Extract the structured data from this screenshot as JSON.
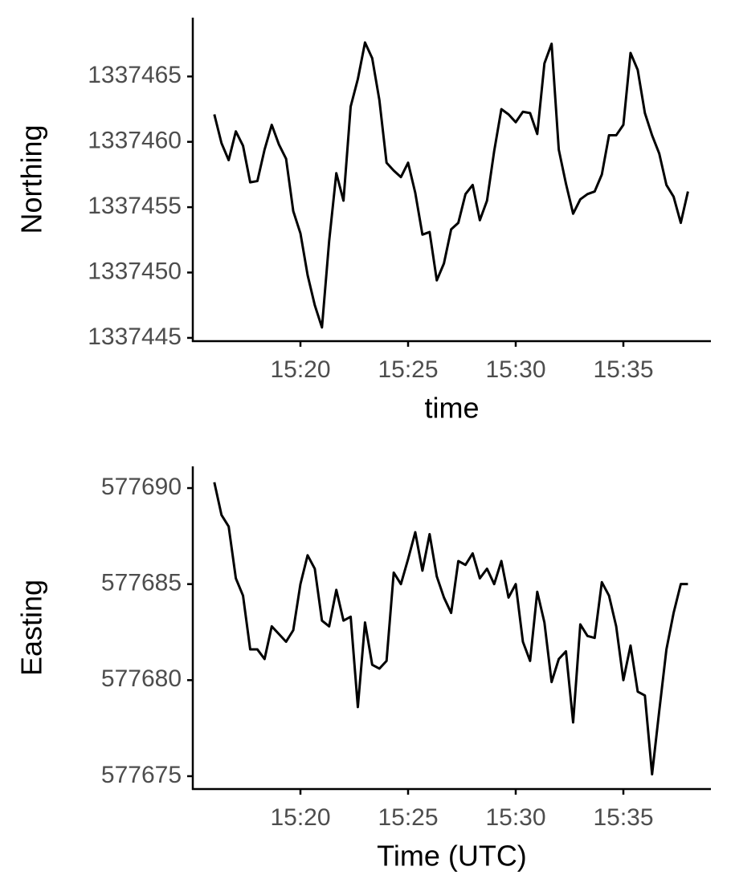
{
  "chart_data": [
    {
      "type": "line",
      "x_label": "time",
      "y_label": "Northing",
      "xlim": [
        "15:15:00",
        "15:39:04"
      ],
      "xticks": [
        {
          "value": "15:20:00",
          "label": "15:20"
        },
        {
          "value": "15:25:00",
          "label": "15:25"
        },
        {
          "value": "15:30:00",
          "label": "15:30"
        },
        {
          "value": "15:35:00",
          "label": "15:35"
        }
      ],
      "ylim": [
        1337444.75,
        1337469.5
      ],
      "yticks": [
        1337445,
        1337450,
        1337455,
        1337460,
        1337465
      ],
      "x": [
        "15:16:00",
        "15:16:20",
        "15:16:40",
        "15:17:00",
        "15:17:20",
        "15:17:40",
        "15:18:00",
        "15:18:20",
        "15:18:40",
        "15:19:00",
        "15:19:20",
        "15:19:40",
        "15:20:00",
        "15:20:20",
        "15:20:40",
        "15:21:00",
        "15:21:20",
        "15:21:40",
        "15:22:00",
        "15:22:20",
        "15:22:40",
        "15:23:00",
        "15:23:20",
        "15:23:40",
        "15:24:00",
        "15:24:20",
        "15:24:40",
        "15:25:00",
        "15:25:20",
        "15:25:40",
        "15:26:00",
        "15:26:20",
        "15:26:40",
        "15:27:00",
        "15:27:20",
        "15:27:40",
        "15:28:00",
        "15:28:20",
        "15:28:40",
        "15:29:00",
        "15:29:20",
        "15:29:40",
        "15:30:00",
        "15:30:20",
        "15:30:40",
        "15:31:00",
        "15:31:20",
        "15:31:40",
        "15:32:00",
        "15:32:20",
        "15:32:40",
        "15:33:00",
        "15:33:20",
        "15:33:40",
        "15:34:00",
        "15:34:20",
        "15:34:40",
        "15:35:00",
        "15:35:20",
        "15:35:40",
        "15:36:00",
        "15:36:20",
        "15:36:40",
        "15:37:00",
        "15:37:20",
        "15:37:40",
        "15:38:00"
      ],
      "series": [
        {
          "color": "#000000",
          "values": [
            1337462.1,
            1337459.9,
            1337458.6,
            1337460.8,
            1337459.7,
            1337456.9,
            1337457.0,
            1337459.4,
            1337461.3,
            1337459.8,
            1337458.7,
            1337454.7,
            1337453.0,
            1337449.8,
            1337447.5,
            1337445.8,
            1337452.4,
            1337457.6,
            1337455.5,
            1337462.7,
            1337464.8,
            1337467.6,
            1337466.4,
            1337463.2,
            1337458.4,
            1337457.8,
            1337457.3,
            1337458.4,
            1337456.1,
            1337452.9,
            1337453.1,
            1337449.4,
            1337450.7,
            1337453.3,
            1337453.8,
            1337456.0,
            1337456.7,
            1337454.0,
            1337455.5,
            1337459.3,
            1337462.5,
            1337462.1,
            1337461.5,
            1337462.3,
            1337462.2,
            1337460.6,
            1337466.0,
            1337467.5,
            1337459.4,
            1337456.8,
            1337454.5,
            1337455.6,
            1337456.0,
            1337456.2,
            1337457.5,
            1337460.5,
            1337460.5,
            1337461.3,
            1337466.8,
            1337465.5,
            1337462.2,
            1337460.5,
            1337459.1,
            1337456.7,
            1337455.8,
            1337453.8,
            1337456.2
          ]
        }
      ]
    },
    {
      "type": "line",
      "x_label": "Time (UTC)",
      "y_label": "Easting",
      "xlim": [
        "15:15:00",
        "15:39:04"
      ],
      "xticks": [
        {
          "value": "15:20:00",
          "label": "15:20"
        },
        {
          "value": "15:25:00",
          "label": "15:25"
        },
        {
          "value": "15:30:00",
          "label": "15:30"
        },
        {
          "value": "15:35:00",
          "label": "15:35"
        }
      ],
      "ylim": [
        577674.33,
        577691.13
      ],
      "yticks": [
        577675,
        577680,
        577685,
        577690
      ],
      "x": [
        "15:16:00",
        "15:16:20",
        "15:16:40",
        "15:17:00",
        "15:17:20",
        "15:17:40",
        "15:18:00",
        "15:18:20",
        "15:18:40",
        "15:19:00",
        "15:19:20",
        "15:19:40",
        "15:20:00",
        "15:20:20",
        "15:20:40",
        "15:21:00",
        "15:21:20",
        "15:21:40",
        "15:22:00",
        "15:22:20",
        "15:22:40",
        "15:23:00",
        "15:23:20",
        "15:23:40",
        "15:24:00",
        "15:24:20",
        "15:24:40",
        "15:25:00",
        "15:25:20",
        "15:25:40",
        "15:26:00",
        "15:26:20",
        "15:26:40",
        "15:27:00",
        "15:27:20",
        "15:27:40",
        "15:28:00",
        "15:28:20",
        "15:28:40",
        "15:29:00",
        "15:29:20",
        "15:29:40",
        "15:30:00",
        "15:30:20",
        "15:30:40",
        "15:31:00",
        "15:31:20",
        "15:31:40",
        "15:32:00",
        "15:32:20",
        "15:32:40",
        "15:33:00",
        "15:33:20",
        "15:33:40",
        "15:34:00",
        "15:34:20",
        "15:34:40",
        "15:35:00",
        "15:35:20",
        "15:35:40",
        "15:36:00",
        "15:36:20",
        "15:36:40",
        "15:37:00",
        "15:37:20",
        "15:37:40",
        "15:38:00"
      ],
      "series": [
        {
          "color": "#000000",
          "values": [
            577690.3,
            577688.6,
            577688.0,
            577685.3,
            577684.4,
            577681.6,
            577681.6,
            577681.1,
            577682.8,
            577682.4,
            577682.0,
            577682.6,
            577685.0,
            577686.5,
            577685.8,
            577683.1,
            577682.8,
            577684.7,
            577683.1,
            577683.3,
            577678.6,
            577683.0,
            577680.8,
            577680.6,
            577681.0,
            577685.6,
            577685.0,
            577686.3,
            577687.7,
            577685.7,
            577687.6,
            577685.4,
            577684.3,
            577683.5,
            577686.2,
            577686.0,
            577686.6,
            577685.3,
            577685.8,
            577685.0,
            577686.2,
            577684.3,
            577685.0,
            577682.0,
            577681.0,
            577684.6,
            577683.0,
            577679.9,
            577681.1,
            577681.5,
            577677.8,
            577682.9,
            577682.3,
            577682.2,
            577685.1,
            577684.4,
            577682.8,
            577680.0,
            577681.8,
            577679.4,
            577679.2,
            577675.1,
            577678.4,
            577681.6,
            577683.5,
            577685.0,
            577685.0
          ]
        }
      ]
    }
  ]
}
